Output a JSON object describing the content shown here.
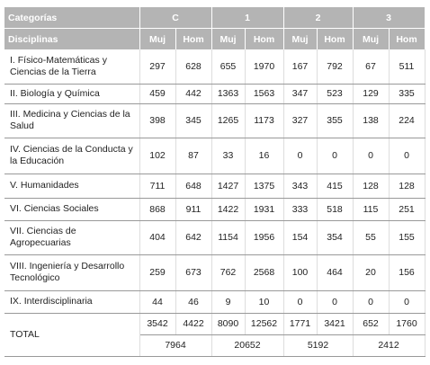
{
  "header": {
    "category_label": "Categorías",
    "discipline_label": "Disciplinas",
    "groups": [
      "C",
      "1",
      "2",
      "3"
    ],
    "subheaders": [
      "Muj",
      "Hom",
      "Muj",
      "Hom",
      "Muj",
      "Hom",
      "Muj",
      "Hom"
    ]
  },
  "table": {
    "rows": [
      {
        "label": "I. Físico-Matemáticas y Ciencias de la Tierra",
        "values": [
          297,
          628,
          655,
          1970,
          167,
          792,
          67,
          511
        ]
      },
      {
        "label": "II. Biología y Química",
        "values": [
          459,
          442,
          1363,
          1563,
          347,
          523,
          129,
          335
        ]
      },
      {
        "label": "III. Medicina y Ciencias de la Salud",
        "values": [
          398,
          345,
          1265,
          1173,
          327,
          355,
          138,
          224
        ]
      },
      {
        "label": "IV. Ciencias de la Conducta y la Educación",
        "values": [
          102,
          87,
          33,
          16,
          0,
          0,
          0,
          0
        ]
      },
      {
        "label": "V. Humanidades",
        "values": [
          711,
          648,
          1427,
          1375,
          343,
          415,
          128,
          128
        ]
      },
      {
        "label": "VI. Ciencias Sociales",
        "values": [
          868,
          911,
          1422,
          1931,
          333,
          518,
          115,
          251
        ]
      },
      {
        "label": "VII. Ciencias de Agropecuarias",
        "values": [
          404,
          642,
          1154,
          1956,
          154,
          354,
          55,
          155
        ]
      },
      {
        "label": "VIII. Ingeniería y Desarrollo Tecnológico",
        "values": [
          259,
          673,
          762,
          2568,
          100,
          464,
          20,
          156
        ]
      },
      {
        "label": "IX. Interdisciplinaria",
        "values": [
          44,
          46,
          9,
          10,
          0,
          0,
          0,
          0
        ]
      }
    ],
    "total": {
      "label": "TOTAL",
      "values": [
        3542,
        4422,
        8090,
        12562,
        1771,
        3421,
        652,
        1760
      ],
      "combined": [
        7964,
        20652,
        5192,
        2412
      ]
    }
  }
}
